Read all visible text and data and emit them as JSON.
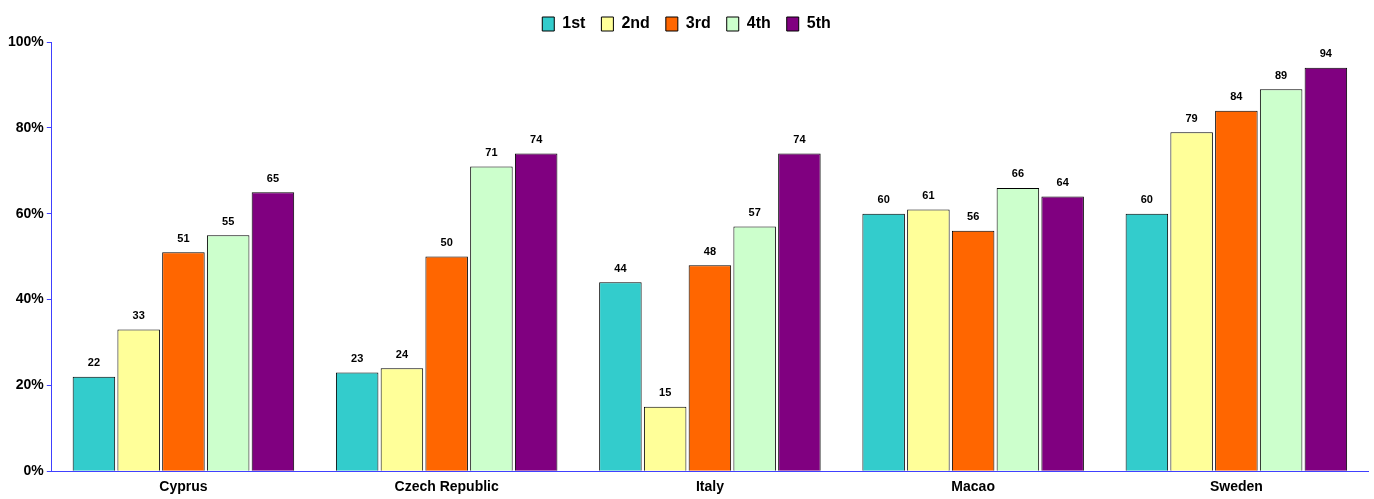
{
  "chart_data": {
    "type": "bar",
    "categories": [
      "Cyprus",
      "Czech Republic",
      "Italy",
      "Macao",
      "Sweden"
    ],
    "series": [
      {
        "name": "1st",
        "color": "#33cccc",
        "values": [
          22,
          23,
          44,
          60,
          60
        ]
      },
      {
        "name": "2nd",
        "color": "#ffff99",
        "values": [
          33,
          24,
          15,
          61,
          79
        ]
      },
      {
        "name": "3rd",
        "color": "#ff6600",
        "values": [
          51,
          50,
          48,
          56,
          84
        ]
      },
      {
        "name": "4th",
        "color": "#ccffcc",
        "values": [
          55,
          71,
          57,
          66,
          89
        ]
      },
      {
        "name": "5th",
        "color": "#800080",
        "values": [
          65,
          74,
          74,
          64,
          94
        ]
      }
    ],
    "ylim": [
      0,
      100
    ],
    "yticks": [
      {
        "value": 0,
        "label": "0%"
      },
      {
        "value": 20,
        "label": "20%"
      },
      {
        "value": 40,
        "label": "40%"
      },
      {
        "value": 60,
        "label": "60%"
      },
      {
        "value": 80,
        "label": "80%"
      },
      {
        "value": 100,
        "label": "100%"
      }
    ],
    "data_labels": true,
    "grid": false,
    "legend": "top"
  }
}
